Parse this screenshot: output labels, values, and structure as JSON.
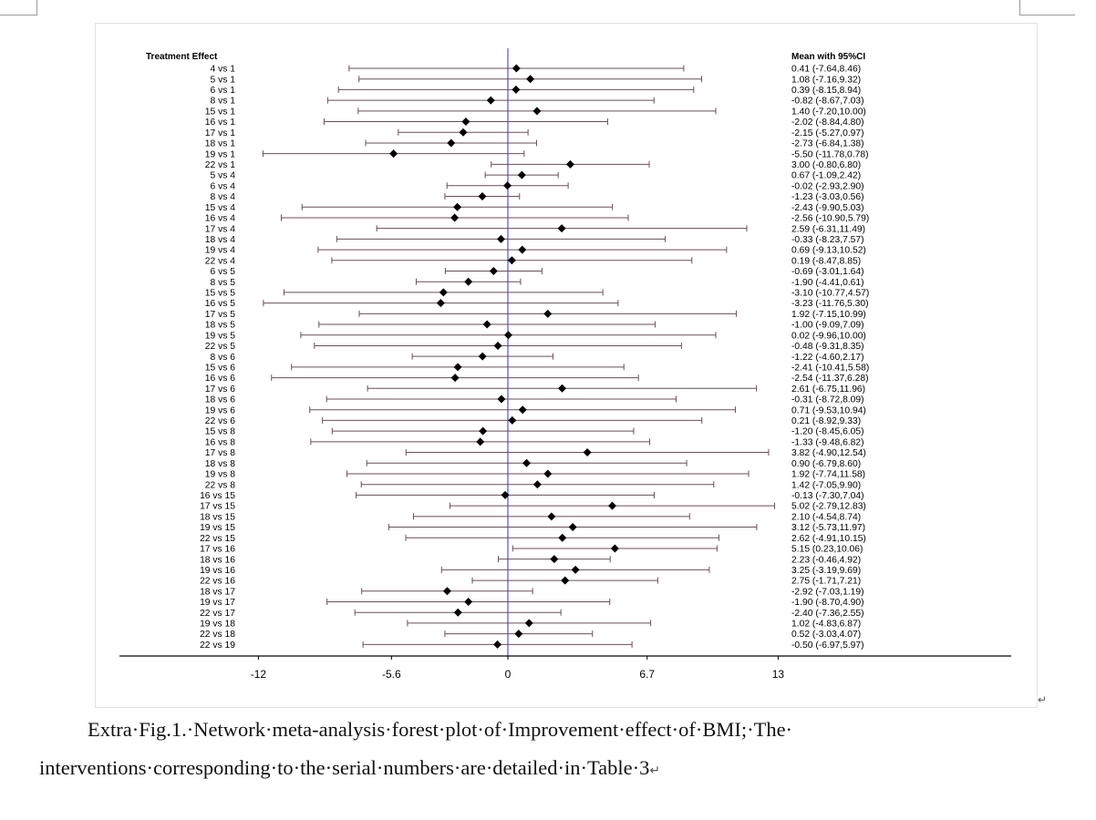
{
  "chart_data": {
    "type": "forest",
    "left_header": "Treatment Effect",
    "right_header": "Mean with 95%CI",
    "x_ticks": [
      -12,
      -5.6,
      0,
      6.7,
      13
    ],
    "xlim": [
      -18.5,
      24
    ],
    "reference_line": 0,
    "colors": {
      "reference_line": "#3333aa",
      "ci_line": "#6e4e55",
      "axis": "#000000",
      "marker": "#000000"
    },
    "rows": [
      {
        "label": "4 vs 1",
        "mean": 0.41,
        "lo": -7.64,
        "hi": 8.46,
        "ci_text": "0.41 (-7.64,8.46)"
      },
      {
        "label": "5 vs 1",
        "mean": 1.08,
        "lo": -7.16,
        "hi": 9.32,
        "ci_text": "1.08 (-7.16,9.32)"
      },
      {
        "label": "6 vs 1",
        "mean": 0.39,
        "lo": -8.15,
        "hi": 8.94,
        "ci_text": "0.39 (-8.15,8.94)"
      },
      {
        "label": "8 vs 1",
        "mean": -0.82,
        "lo": -8.67,
        "hi": 7.03,
        "ci_text": "-0.82 (-8.67,7.03)"
      },
      {
        "label": "15 vs 1",
        "mean": 1.4,
        "lo": -7.2,
        "hi": 10.0,
        "ci_text": "1.40 (-7.20,10.00)"
      },
      {
        "label": "16 vs 1",
        "mean": -2.02,
        "lo": -8.84,
        "hi": 4.8,
        "ci_text": "-2.02 (-8.84,4.80)"
      },
      {
        "label": "17 vs 1",
        "mean": -2.15,
        "lo": -5.27,
        "hi": 0.97,
        "ci_text": "-2.15 (-5.27,0.97)"
      },
      {
        "label": "18 vs 1",
        "mean": -2.73,
        "lo": -6.84,
        "hi": 1.38,
        "ci_text": "-2.73 (-6.84,1.38)"
      },
      {
        "label": "19 vs 1",
        "mean": -5.5,
        "lo": -11.78,
        "hi": 0.78,
        "ci_text": "-5.50 (-11.78,0.78)"
      },
      {
        "label": "22 vs 1",
        "mean": 3.0,
        "lo": -0.8,
        "hi": 6.8,
        "ci_text": "3.00 (-0.80,6.80)"
      },
      {
        "label": "5 vs 4",
        "mean": 0.67,
        "lo": -1.09,
        "hi": 2.42,
        "ci_text": "0.67 (-1.09,2.42)"
      },
      {
        "label": "6 vs 4",
        "mean": -0.02,
        "lo": -2.93,
        "hi": 2.9,
        "ci_text": "-0.02 (-2.93,2.90)"
      },
      {
        "label": "8 vs 4",
        "mean": -1.23,
        "lo": -3.03,
        "hi": 0.56,
        "ci_text": "-1.23 (-3.03,0.56)"
      },
      {
        "label": "15 vs 4",
        "mean": -2.43,
        "lo": -9.9,
        "hi": 5.03,
        "ci_text": "-2.43 (-9.90,5.03)"
      },
      {
        "label": "16 vs 4",
        "mean": -2.56,
        "lo": -10.9,
        "hi": 5.79,
        "ci_text": "-2.56 (-10.90,5.79)"
      },
      {
        "label": "17 vs 4",
        "mean": 2.59,
        "lo": -6.31,
        "hi": 11.49,
        "ci_text": "2.59 (-6.31,11.49)"
      },
      {
        "label": "18 vs 4",
        "mean": -0.33,
        "lo": -8.23,
        "hi": 7.57,
        "ci_text": "-0.33 (-8.23,7.57)"
      },
      {
        "label": "19 vs 4",
        "mean": 0.69,
        "lo": -9.13,
        "hi": 10.52,
        "ci_text": "0.69 (-9.13,10.52)"
      },
      {
        "label": "22 vs 4",
        "mean": 0.19,
        "lo": -8.47,
        "hi": 8.85,
        "ci_text": "0.19 (-8.47,8.85)"
      },
      {
        "label": "6 vs 5",
        "mean": -0.69,
        "lo": -3.01,
        "hi": 1.64,
        "ci_text": "-0.69 (-3.01,1.64)"
      },
      {
        "label": "8 vs 5",
        "mean": -1.9,
        "lo": -4.41,
        "hi": 0.61,
        "ci_text": "-1.90 (-4.41,0.61)"
      },
      {
        "label": "15 vs 5",
        "mean": -3.1,
        "lo": -10.77,
        "hi": 4.57,
        "ci_text": "-3.10 (-10.77,4.57)"
      },
      {
        "label": "16 vs 5",
        "mean": -3.23,
        "lo": -11.76,
        "hi": 5.3,
        "ci_text": "-3.23 (-11.76,5.30)"
      },
      {
        "label": "17 vs 5",
        "mean": 1.92,
        "lo": -7.15,
        "hi": 10.99,
        "ci_text": "1.92 (-7.15,10.99)"
      },
      {
        "label": "18 vs 5",
        "mean": -1.0,
        "lo": -9.09,
        "hi": 7.09,
        "ci_text": "-1.00 (-9.09,7.09)"
      },
      {
        "label": "19 vs 5",
        "mean": 0.02,
        "lo": -9.96,
        "hi": 10.0,
        "ci_text": "0.02 (-9.96,10.00)"
      },
      {
        "label": "22 vs 5",
        "mean": -0.48,
        "lo": -9.31,
        "hi": 8.35,
        "ci_text": "-0.48 (-9.31,8.35)"
      },
      {
        "label": "8 vs 6",
        "mean": -1.22,
        "lo": -4.6,
        "hi": 2.17,
        "ci_text": "-1.22 (-4.60,2.17)"
      },
      {
        "label": "15 vs 6",
        "mean": -2.41,
        "lo": -10.41,
        "hi": 5.58,
        "ci_text": "-2.41 (-10.41,5.58)"
      },
      {
        "label": "16 vs 6",
        "mean": -2.54,
        "lo": -11.37,
        "hi": 6.28,
        "ci_text": "-2.54 (-11.37,6.28)"
      },
      {
        "label": "17 vs 6",
        "mean": 2.61,
        "lo": -6.75,
        "hi": 11.96,
        "ci_text": "2.61 (-6.75,11.96)"
      },
      {
        "label": "18 vs 6",
        "mean": -0.31,
        "lo": -8.72,
        "hi": 8.09,
        "ci_text": "-0.31 (-8.72,8.09)"
      },
      {
        "label": "19 vs 6",
        "mean": 0.71,
        "lo": -9.53,
        "hi": 10.94,
        "ci_text": "0.71 (-9.53,10.94)"
      },
      {
        "label": "22 vs 6",
        "mean": 0.21,
        "lo": -8.92,
        "hi": 9.33,
        "ci_text": "0.21 (-8.92,9.33)"
      },
      {
        "label": "15 vs 8",
        "mean": -1.2,
        "lo": -8.45,
        "hi": 6.05,
        "ci_text": "-1.20 (-8.45,6.05)"
      },
      {
        "label": "16 vs 8",
        "mean": -1.33,
        "lo": -9.48,
        "hi": 6.82,
        "ci_text": "-1.33 (-9.48,6.82)"
      },
      {
        "label": "17 vs 8",
        "mean": 3.82,
        "lo": -4.9,
        "hi": 12.54,
        "ci_text": "3.82 (-4.90,12.54)"
      },
      {
        "label": "18 vs 8",
        "mean": 0.9,
        "lo": -6.79,
        "hi": 8.6,
        "ci_text": "0.90 (-6.79,8.60)"
      },
      {
        "label": "19 vs 8",
        "mean": 1.92,
        "lo": -7.74,
        "hi": 11.58,
        "ci_text": "1.92 (-7.74,11.58)"
      },
      {
        "label": "22 vs 8",
        "mean": 1.42,
        "lo": -7.05,
        "hi": 9.9,
        "ci_text": "1.42 (-7.05,9.90)"
      },
      {
        "label": "16 vs 15",
        "mean": -0.13,
        "lo": -7.3,
        "hi": 7.04,
        "ci_text": "-0.13 (-7.30,7.04)"
      },
      {
        "label": "17 vs 15",
        "mean": 5.02,
        "lo": -2.79,
        "hi": 12.83,
        "ci_text": "5.02 (-2.79,12.83)"
      },
      {
        "label": "18 vs 15",
        "mean": 2.1,
        "lo": -4.54,
        "hi": 8.74,
        "ci_text": "2.10 (-4.54,8.74)"
      },
      {
        "label": "19 vs 15",
        "mean": 3.12,
        "lo": -5.73,
        "hi": 11.97,
        "ci_text": "3.12 (-5.73,11.97)"
      },
      {
        "label": "22 vs 15",
        "mean": 2.62,
        "lo": -4.91,
        "hi": 10.15,
        "ci_text": "2.62 (-4.91,10.15)"
      },
      {
        "label": "17 vs 16",
        "mean": 5.15,
        "lo": 0.23,
        "hi": 10.06,
        "ci_text": "5.15 (0.23,10.06)"
      },
      {
        "label": "18 vs 16",
        "mean": 2.23,
        "lo": -0.46,
        "hi": 4.92,
        "ci_text": "2.23 (-0.46,4.92)"
      },
      {
        "label": "19 vs 16",
        "mean": 3.25,
        "lo": -3.19,
        "hi": 9.69,
        "ci_text": "3.25 (-3.19,9.69)"
      },
      {
        "label": "22 vs 16",
        "mean": 2.75,
        "lo": -1.71,
        "hi": 7.21,
        "ci_text": "2.75 (-1.71,7.21)"
      },
      {
        "label": "18 vs 17",
        "mean": -2.92,
        "lo": -7.03,
        "hi": 1.19,
        "ci_text": "-2.92 (-7.03,1.19)"
      },
      {
        "label": "19 vs 17",
        "mean": -1.9,
        "lo": -8.7,
        "hi": 4.9,
        "ci_text": "-1.90 (-8.70,4.90)"
      },
      {
        "label": "22 vs 17",
        "mean": -2.4,
        "lo": -7.36,
        "hi": 2.55,
        "ci_text": "-2.40 (-7.36,2.55)"
      },
      {
        "label": "19 vs 18",
        "mean": 1.02,
        "lo": -4.83,
        "hi": 6.87,
        "ci_text": "1.02 (-4.83,6.87)"
      },
      {
        "label": "22 vs 18",
        "mean": 0.52,
        "lo": -3.03,
        "hi": 4.07,
        "ci_text": "0.52 (-3.03,4.07)"
      },
      {
        "label": "22 vs 19",
        "mean": -0.5,
        "lo": -6.97,
        "hi": 5.97,
        "ci_text": "-0.50 (-6.97,5.97)"
      }
    ]
  },
  "caption": {
    "line1": "Extra·Fig.1.·Network·meta-analysis·forest·plot·of·Improvement·effect·of·BMI;·The·",
    "line2": "interventions·corresponding·to·the·serial·numbers·are·detailed·in·Table·3",
    "return_mark": "↵"
  }
}
